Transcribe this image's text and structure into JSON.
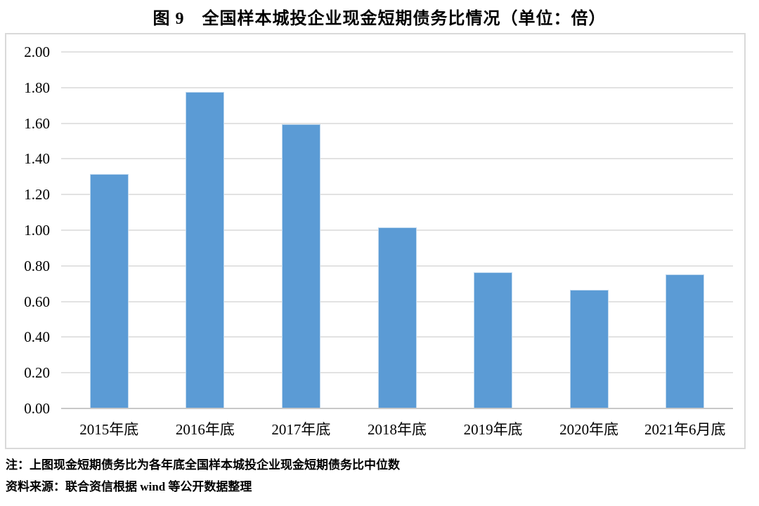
{
  "title": "图 9　全国样本城投企业现金短期债务比情况（单位：倍）",
  "notes": {
    "note1": "注：上图现金短期债务比为各年底全国样本城投企业现金短期债务比中位数",
    "note2": "资料来源：联合资信根据 wind 等公开数据整理"
  },
  "colors": {
    "bar": "#5b9bd5",
    "bar_border": "#bdd7ee",
    "gridline": "#e2e2e2",
    "axis": "#c8c8c8",
    "frame_border": "#d9d9d9",
    "text": "#000000"
  },
  "chart_data": {
    "type": "bar",
    "title": "图 9　全国样本城投企业现金短期债务比情况（单位：倍）",
    "categories": [
      "2015年底",
      "2016年底",
      "2017年底",
      "2018年底",
      "2019年底",
      "2020年底",
      "2021年6月底"
    ],
    "values": [
      1.31,
      1.77,
      1.59,
      1.01,
      0.76,
      0.66,
      0.75
    ],
    "xlabel": "",
    "ylabel": "",
    "unit": "倍",
    "ylim": [
      0.0,
      2.0
    ],
    "ytick_step": 0.2,
    "ytick_labels": [
      "0.00",
      "0.20",
      "0.40",
      "0.60",
      "0.80",
      "1.00",
      "1.20",
      "1.40",
      "1.60",
      "1.80",
      "2.00"
    ],
    "grid": true,
    "legend": false
  }
}
